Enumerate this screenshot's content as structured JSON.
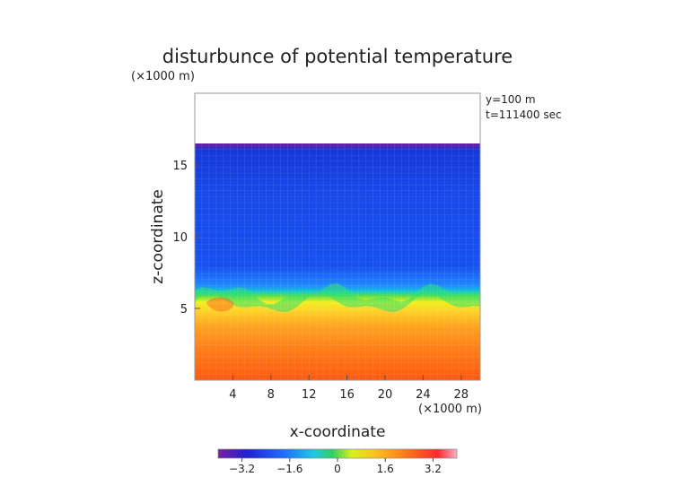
{
  "chart_data": {
    "type": "heatmap",
    "title": "disturbunce of potential temperature",
    "z_unit_label": "(×1000 m)",
    "x_unit_label": "(×1000 m)",
    "xlabel": "x-coordinate",
    "ylabel": "z-coordinate",
    "info": [
      "y=100 m",
      "t=111400 sec"
    ],
    "xlim": [
      0,
      30
    ],
    "ylim": [
      0,
      20
    ],
    "x_ticks": [
      4,
      8,
      12,
      16,
      20,
      24,
      28
    ],
    "y_ticks": [
      5,
      10,
      15
    ],
    "colorbar": {
      "range": [
        -4,
        4
      ],
      "ticks": [
        -3.2,
        -1.6,
        0,
        1.6,
        3.2
      ],
      "tick_labels": [
        "−3.2",
        "−1.6",
        "0",
        "1.6",
        "3.2"
      ]
    },
    "data_top_z": 16.5,
    "layers": [
      {
        "z_range": [
          0,
          2
        ],
        "value": 2.8
      },
      {
        "z_range": [
          2,
          4
        ],
        "value": 2.3
      },
      {
        "z_range": [
          4,
          5.5
        ],
        "value": 1.7
      },
      {
        "z_range": [
          5.5,
          6.2
        ],
        "value": 0.4
      },
      {
        "z_range": [
          6.2,
          7
        ],
        "value": -1.0
      },
      {
        "z_range": [
          7,
          16.5
        ],
        "value": -2.6
      }
    ]
  }
}
